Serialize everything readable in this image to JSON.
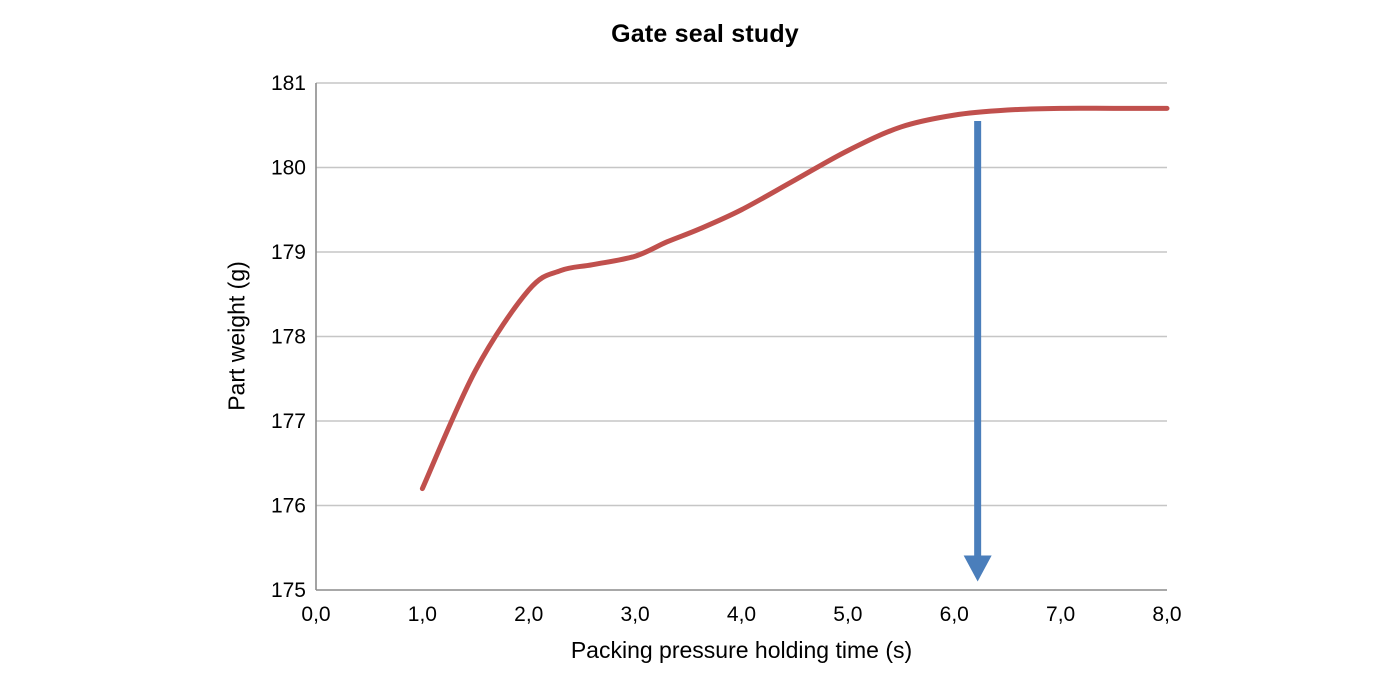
{
  "chart_data": {
    "type": "line",
    "title": "Gate seal study",
    "xlabel": "Packing pressure holding time (s)",
    "ylabel": "Part weight (g)",
    "xlim": [
      0,
      8
    ],
    "ylim": [
      175,
      181
    ],
    "x_ticks": [
      0,
      1,
      2,
      3,
      4,
      5,
      6,
      7,
      8
    ],
    "x_tick_labels": [
      "0,0",
      "1,0",
      "2,0",
      "3,0",
      "4,0",
      "5,0",
      "6,0",
      "7,0",
      "8,0"
    ],
    "y_ticks": [
      175,
      176,
      177,
      178,
      179,
      180,
      181
    ],
    "y_tick_labels": [
      "175",
      "176",
      "177",
      "178",
      "179",
      "180",
      "181"
    ],
    "grid": "horizontal",
    "legend": "none",
    "colors": {
      "series": "#C0504D",
      "annotation_arrow": "#4A7EBB",
      "gridline": "#C6C6C6",
      "axis_line": "#8C8C8C"
    },
    "series": [
      {
        "name": "Part weight",
        "smooth": true,
        "x": [
          1.0,
          1.5,
          2.0,
          2.3,
          2.6,
          3.0,
          3.3,
          3.6,
          4.0,
          4.5,
          5.0,
          5.5,
          6.0,
          6.5,
          7.0,
          7.5,
          8.0
        ],
        "y": [
          176.2,
          177.6,
          178.55,
          178.78,
          178.85,
          178.95,
          179.12,
          179.27,
          179.5,
          179.85,
          180.2,
          180.48,
          180.62,
          180.68,
          180.7,
          180.7,
          180.7
        ]
      }
    ],
    "annotations": [
      {
        "type": "arrow-down",
        "x": 6.22,
        "y_start": 180.55,
        "y_end": 175.1,
        "meaning": "gate-seal-time-marker"
      }
    ]
  }
}
